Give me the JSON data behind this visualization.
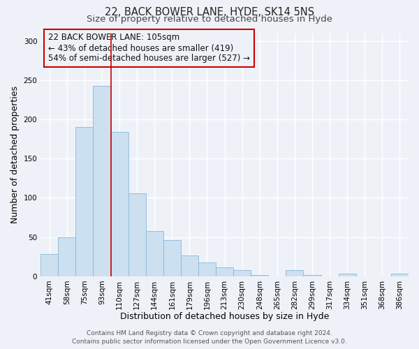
{
  "title_line1": "22, BACK BOWER LANE, HYDE, SK14 5NS",
  "title_line2": "Size of property relative to detached houses in Hyde",
  "xlabel": "Distribution of detached houses by size in Hyde",
  "ylabel": "Number of detached properties",
  "bar_labels": [
    "41sqm",
    "58sqm",
    "75sqm",
    "93sqm",
    "110sqm",
    "127sqm",
    "144sqm",
    "161sqm",
    "179sqm",
    "196sqm",
    "213sqm",
    "230sqm",
    "248sqm",
    "265sqm",
    "282sqm",
    "299sqm",
    "317sqm",
    "334sqm",
    "351sqm",
    "368sqm",
    "386sqm"
  ],
  "bar_values": [
    28,
    50,
    190,
    243,
    184,
    106,
    58,
    46,
    27,
    18,
    11,
    8,
    2,
    0,
    8,
    2,
    0,
    3,
    0,
    0,
    3
  ],
  "bar_color": "#cce0f0",
  "bar_edgecolor": "#8ab8d8",
  "ylim": [
    0,
    310
  ],
  "yticks": [
    0,
    50,
    100,
    150,
    200,
    250,
    300
  ],
  "vline_color": "#cc0000",
  "annotation_title": "22 BACK BOWER LANE: 105sqm",
  "annotation_line1": "← 43% of detached houses are smaller (419)",
  "annotation_line2": "54% of semi-detached houses are larger (527) →",
  "footer_line1": "Contains HM Land Registry data © Crown copyright and database right 2024.",
  "footer_line2": "Contains public sector information licensed under the Open Government Licence v3.0.",
  "bg_color": "#eef2f8",
  "grid_color": "#ffffff",
  "title_fontsize": 10.5,
  "subtitle_fontsize": 9.5,
  "axis_label_fontsize": 9,
  "tick_fontsize": 7.5,
  "annotation_fontsize": 8.5,
  "footer_fontsize": 6.5
}
